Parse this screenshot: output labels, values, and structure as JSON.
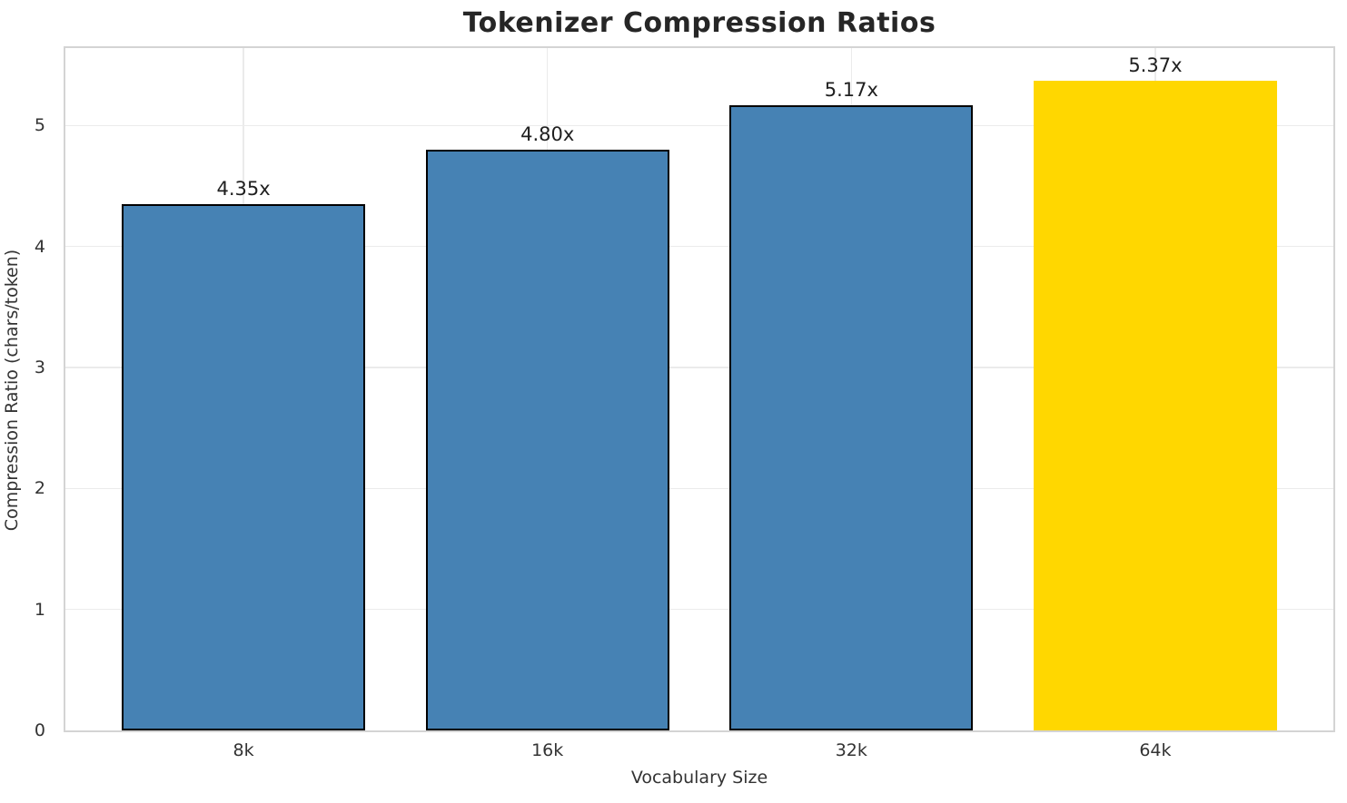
{
  "chart_data": {
    "type": "bar",
    "title": "Tokenizer Compression Ratios",
    "xlabel": "Vocabulary Size",
    "ylabel": "Compression Ratio (chars/token)",
    "categories": [
      "8k",
      "16k",
      "32k",
      "64k"
    ],
    "values": [
      4.35,
      4.8,
      5.17,
      5.37
    ],
    "bar_labels": [
      "4.35x",
      "4.80x",
      "5.17x",
      "5.37x"
    ],
    "bar_colors": [
      "#4682b4",
      "#4682b4",
      "#4682b4",
      "#ffd700"
    ],
    "bar_edge_colors": [
      "#000000",
      "#000000",
      "#000000",
      "none"
    ],
    "highlight_color": "#ffd700",
    "series_color": "#4682b4",
    "yticks": [
      0,
      1,
      2,
      3,
      4,
      5
    ],
    "ylim": [
      0,
      5.64
    ],
    "grid": true,
    "legend_position": "none"
  }
}
